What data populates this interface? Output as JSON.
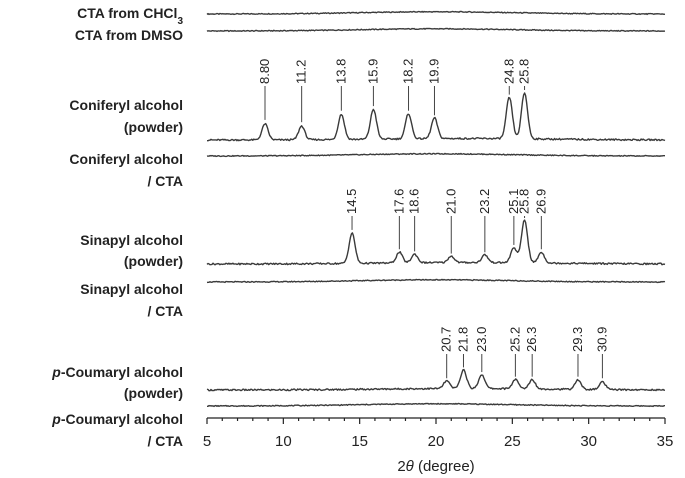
{
  "chart_data": {
    "type": "line",
    "xlabel_prefix": "2",
    "xlabel_italic": "θ",
    "xlabel_suffix": " (degree)",
    "xlim": [
      5,
      35
    ],
    "xticks": [
      5,
      10,
      15,
      20,
      25,
      30,
      35
    ],
    "grid": false,
    "series": [
      {
        "id": "cta-chcl3",
        "label_lines": [
          [
            {
              "t": "CTA from CHCl"
            },
            {
              "t": "3",
              "sub": true
            }
          ]
        ],
        "kind": "amorphous",
        "peaks": []
      },
      {
        "id": "cta-dmso",
        "label_lines": [
          [
            {
              "t": "CTA from DMSO"
            }
          ]
        ],
        "kind": "amorphous",
        "peaks": []
      },
      {
        "id": "coniferyl-powder",
        "label_lines": [
          [
            {
              "t": "Coniferyl alcohol"
            }
          ],
          [
            {
              "t": "(powder)"
            }
          ]
        ],
        "kind": "crystalline",
        "peaks": [
          {
            "x": 8.8,
            "label": "8.80",
            "h": 0.35
          },
          {
            "x": 11.2,
            "label": "11.2",
            "h": 0.3
          },
          {
            "x": 13.8,
            "label": "13.8",
            "h": 0.55
          },
          {
            "x": 15.9,
            "label": "15.9",
            "h": 0.65
          },
          {
            "x": 18.2,
            "label": "18.2",
            "h": 0.55
          },
          {
            "x": 19.9,
            "label": "19.9",
            "h": 0.45
          },
          {
            "x": 24.8,
            "label": "24.8",
            "h": 0.9
          },
          {
            "x": 25.8,
            "label": "25.8",
            "h": 1.0
          }
        ]
      },
      {
        "id": "coniferyl-cta",
        "label_lines": [
          [
            {
              "t": "Coniferyl alcohol"
            }
          ],
          [
            {
              "t": "/ CTA"
            }
          ]
        ],
        "kind": "amorphous",
        "peaks": []
      },
      {
        "id": "sinapyl-powder",
        "label_lines": [
          [
            {
              "t": "Sinapyl alcohol"
            }
          ],
          [
            {
              "t": "(powder)"
            }
          ]
        ],
        "kind": "crystalline",
        "peaks": [
          {
            "x": 14.5,
            "label": "14.5",
            "h": 0.7
          },
          {
            "x": 17.6,
            "label": "17.6",
            "h": 0.25
          },
          {
            "x": 18.6,
            "label": "18.6",
            "h": 0.2
          },
          {
            "x": 21.0,
            "label": "21.0",
            "h": 0.15
          },
          {
            "x": 23.2,
            "label": "23.2",
            "h": 0.18
          },
          {
            "x": 25.1,
            "label": "25.1",
            "h": 0.35
          },
          {
            "x": 25.8,
            "label": "25.8",
            "h": 1.0
          },
          {
            "x": 26.9,
            "label": "26.9",
            "h": 0.25
          }
        ]
      },
      {
        "id": "sinapyl-cta",
        "label_lines": [
          [
            {
              "t": "Sinapyl alcohol"
            }
          ],
          [
            {
              "t": "/ CTA"
            }
          ]
        ],
        "kind": "amorphous",
        "peaks": []
      },
      {
        "id": "coumaryl-powder",
        "label_lines": [
          [
            {
              "t": "p",
              "italic": true
            },
            {
              "t": "-Coumaryl alcohol"
            }
          ],
          [
            {
              "t": "(powder)"
            }
          ]
        ],
        "kind": "crystalline",
        "peaks": [
          {
            "x": 20.7,
            "label": "20.7",
            "h": 0.25
          },
          {
            "x": 21.8,
            "label": "21.8",
            "h": 0.6
          },
          {
            "x": 23.0,
            "label": "23.0",
            "h": 0.45
          },
          {
            "x": 25.2,
            "label": "25.2",
            "h": 0.3
          },
          {
            "x": 26.3,
            "label": "26.3",
            "h": 0.3
          },
          {
            "x": 29.3,
            "label": "29.3",
            "h": 0.3
          },
          {
            "x": 30.9,
            "label": "30.9",
            "h": 0.25
          }
        ]
      },
      {
        "id": "coumaryl-cta",
        "label_lines": [
          [
            {
              "t": "p",
              "italic": true
            },
            {
              "t": "-Coumaryl alcohol"
            }
          ],
          [
            {
              "t": "/ CTA"
            }
          ]
        ],
        "kind": "amorphous",
        "peaks": []
      }
    ]
  }
}
